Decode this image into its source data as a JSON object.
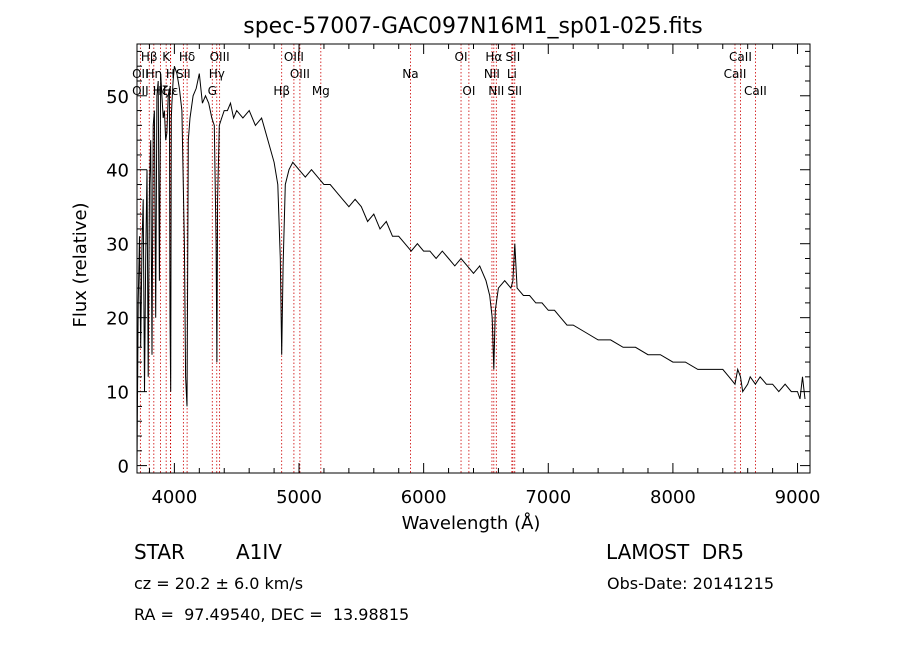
{
  "chart_data": {
    "type": "line",
    "title": "spec-57007-GAC097N16M1_sp01-025.fits",
    "xlabel": "Wavelength (Å)",
    "ylabel": "Flux (relative)",
    "xlim": [
      3700,
      9100
    ],
    "ylim": [
      -1,
      57
    ],
    "xticks": [
      4000,
      5000,
      6000,
      7000,
      8000,
      9000
    ],
    "yticks": [
      0,
      10,
      20,
      30,
      40,
      50
    ],
    "grid": false,
    "line_color": "#000000",
    "marker_color": "#cc0000",
    "series": [
      {
        "x": [
          3700,
          3710,
          3720,
          3730,
          3740,
          3750,
          3760,
          3770,
          3780,
          3790,
          3800,
          3810,
          3820,
          3830,
          3840,
          3850,
          3860,
          3870,
          3880,
          3890,
          3900,
          3910,
          3920,
          3930,
          3940,
          3950,
          3960,
          3965,
          3970,
          3975,
          3980,
          3990,
          4000,
          4020,
          4040,
          4060,
          4080,
          4090,
          4101,
          4112,
          4125,
          4150,
          4175,
          4200,
          4225,
          4250,
          4275,
          4300,
          4320,
          4335,
          4341,
          4347,
          4360,
          4380,
          4400,
          4425,
          4450,
          4475,
          4500,
          4550,
          4600,
          4650,
          4700,
          4750,
          4800,
          4830,
          4850,
          4861,
          4872,
          4890,
          4920,
          4950,
          5000,
          5050,
          5100,
          5150,
          5200,
          5250,
          5300,
          5350,
          5400,
          5450,
          5500,
          5550,
          5600,
          5650,
          5700,
          5750,
          5800,
          5850,
          5900,
          5950,
          6000,
          6050,
          6100,
          6150,
          6200,
          6250,
          6300,
          6350,
          6400,
          6450,
          6500,
          6530,
          6550,
          6563,
          6575,
          6600,
          6650,
          6700,
          6716,
          6731,
          6750,
          6800,
          6850,
          6900,
          6950,
          7000,
          7050,
          7100,
          7150,
          7200,
          7300,
          7400,
          7500,
          7600,
          7700,
          7800,
          7900,
          8000,
          8100,
          8200,
          8300,
          8400,
          8450,
          8498,
          8520,
          8542,
          8560,
          8600,
          8620,
          8662,
          8700,
          8750,
          8800,
          8850,
          8900,
          8950,
          9000,
          9020,
          9040,
          9060
        ],
        "y": [
          0,
          22,
          31,
          16,
          30,
          36,
          10,
          28,
          40,
          12,
          38,
          44,
          15,
          46,
          48,
          20,
          50,
          52,
          25,
          53,
          50,
          47,
          48,
          44,
          45,
          50,
          51,
          20,
          10,
          47,
          49,
          52,
          54,
          53,
          51,
          48,
          30,
          12,
          8,
          44,
          47,
          50,
          51,
          53,
          49,
          50,
          49,
          47,
          46,
          30,
          14,
          36,
          46,
          47,
          48,
          48,
          49,
          47,
          48,
          47,
          48,
          46,
          47,
          44,
          41,
          38,
          28,
          15,
          27,
          38,
          40,
          41,
          40,
          39,
          40,
          39,
          38,
          38,
          37,
          36,
          35,
          36,
          35,
          33,
          34,
          32,
          33,
          31,
          31,
          30,
          29,
          30,
          29,
          29,
          28,
          29,
          28,
          27,
          28,
          27,
          26,
          27,
          25,
          23,
          20,
          13,
          21,
          24,
          25,
          24,
          25,
          30,
          24,
          23,
          23,
          22,
          22,
          21,
          21,
          20,
          19,
          19,
          18,
          17,
          17,
          16,
          16,
          15,
          15,
          14,
          14,
          13,
          13,
          13,
          12,
          11,
          13,
          12,
          10,
          11,
          12,
          11,
          12,
          11,
          11,
          10,
          11,
          10,
          10,
          9,
          12,
          9
        ]
      }
    ],
    "line_markers": [
      {
        "label": "Hβ",
        "x": 3798,
        "row": 1
      },
      {
        "label": "OII",
        "x": 3727,
        "row": 2
      },
      {
        "label": "Hη",
        "x": 3835,
        "row": 2
      },
      {
        "label": "OII",
        "x": 3727,
        "row": 3
      },
      {
        "label": "Hζ",
        "x": 3889,
        "row": 3
      },
      {
        "label": "K",
        "x": 3934,
        "row": 1
      },
      {
        "label": "H",
        "x": 3968,
        "row": 2
      },
      {
        "label": "Hε",
        "x": 3970,
        "row": 3
      },
      {
        "label": "Hδ",
        "x": 4102,
        "row": 1
      },
      {
        "label": "SII",
        "x": 4072,
        "row": 2
      },
      {
        "label": "OIII",
        "x": 4363,
        "row": 1
      },
      {
        "label": "Hγ",
        "x": 4340,
        "row": 2
      },
      {
        "label": "G",
        "x": 4304,
        "row": 3
      },
      {
        "label": "OIII",
        "x": 4959,
        "row": 1
      },
      {
        "label": "OIII",
        "x": 5007,
        "row": 2
      },
      {
        "label": "Hβ",
        "x": 4861,
        "row": 3
      },
      {
        "label": "Mg",
        "x": 5175,
        "row": 3
      },
      {
        "label": "Na",
        "x": 5894,
        "row": 2
      },
      {
        "label": "OI",
        "x": 6300,
        "row": 1
      },
      {
        "label": "OI",
        "x": 6363,
        "row": 3
      },
      {
        "label": "Hα",
        "x": 6563,
        "row": 1
      },
      {
        "label": "NII",
        "x": 6548,
        "row": 2
      },
      {
        "label": "NII",
        "x": 6583,
        "row": 3
      },
      {
        "label": "SII",
        "x": 6716,
        "row": 1
      },
      {
        "label": "Li",
        "x": 6708,
        "row": 2
      },
      {
        "label": "SII",
        "x": 6731,
        "row": 3
      },
      {
        "label": "CaII",
        "x": 8542,
        "row": 1
      },
      {
        "label": "CaII",
        "x": 8498,
        "row": 2
      },
      {
        "label": "CaII",
        "x": 8662,
        "row": 3
      }
    ]
  },
  "info": {
    "object_class": "STAR",
    "subclass": "A1IV",
    "survey": "LAMOST  DR5",
    "redshift": "cz = 20.2 ± 6.0 km/s",
    "obs_date": "Obs-Date: 20141215",
    "coords": "RA =  97.49540, DEC =  13.98815"
  }
}
